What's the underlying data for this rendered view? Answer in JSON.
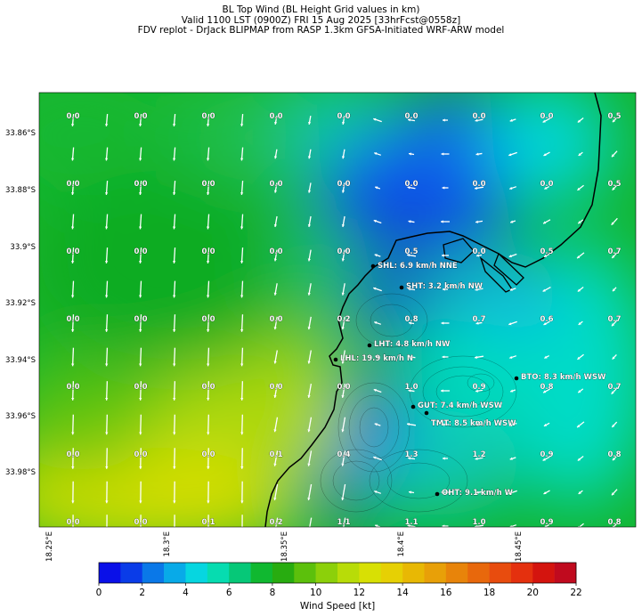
{
  "title": {
    "line1": "BL Top Wind (BL Height Grid values in km)",
    "line2": "Valid 1100 LST (0900Z) FRI 15 Aug 2025 [33hrFcst@0558z]",
    "line3": "FDV replot - DrJack BLIPMAP from RASP 1.3km GFSA-Initiated WRF-ARW model"
  },
  "lat_labels": [
    "33.86°S",
    "33.88°S",
    "33.9°S",
    "33.92°S",
    "33.94°S",
    "33.96°S",
    "33.98°S"
  ],
  "lon_labels": [
    "18.25°E",
    "18.3°E",
    "18.35°E",
    "18.4°E",
    "18.45°E"
  ],
  "grid_values": [
    [
      "0.0",
      "0.0",
      "0.0",
      "0.0",
      "0.0",
      "0.0",
      "0.0",
      "0.0",
      "0.5"
    ],
    [
      "0.0",
      "0.0",
      "0.0",
      "0.0",
      "0.0",
      "0.0",
      "0.0",
      "0.0",
      "0.5"
    ],
    [
      "0.0",
      "0.0",
      "0.0",
      "0.0",
      "0.0",
      "0.5",
      "0.0",
      "0.5",
      "0.7"
    ],
    [
      "0.0",
      "0.0",
      "0.0",
      "0.0",
      "0.2",
      "0.8",
      "0.7",
      "0.6",
      "0.7"
    ],
    [
      "0.0",
      "0.0",
      "0.0",
      "0.0",
      "0.0",
      "1.0",
      "0.9",
      "0.8",
      "0.7"
    ],
    [
      "0.0",
      "0.0",
      "0.0",
      "0.1",
      "0.4",
      "1.3",
      "1.2",
      "0.9",
      "0.8"
    ],
    [
      "0.0",
      "0.0",
      "0.1",
      "0.2",
      "1.1",
      "1.1",
      "1.0",
      "0.9",
      "0.8"
    ]
  ],
  "stations": [
    {
      "label": "SHL: 6.9 km/h NNE"
    },
    {
      "label": "SHT: 3.2 km/h NW"
    },
    {
      "label": "LHT: 4.8 km/h NW"
    },
    {
      "label": "LHL: 19.9 km/h N"
    },
    {
      "label": "BTO: 8.3 km/h WSW"
    },
    {
      "label": "GUT: 7.4 km/h WSW"
    },
    {
      "label": "TMT: 8.5 km/h WSW"
    },
    {
      "label": "OHT: 9.1 km/h W"
    }
  ],
  "colorbar": {
    "title": "Wind Speed [kt]",
    "ticks": [
      "0",
      "2",
      "4",
      "6",
      "8",
      "10",
      "12",
      "14",
      "16",
      "18",
      "20",
      "22"
    ],
    "colors": [
      "#0a10e8",
      "#0a3ce8",
      "#0a78e8",
      "#08aae8",
      "#06d6e0",
      "#06dcb0",
      "#06c878",
      "#10b830",
      "#28ac10",
      "#5cc00c",
      "#8cd00a",
      "#b8dc08",
      "#d8e004",
      "#e6d004",
      "#e8b804",
      "#e8a008",
      "#e8840a",
      "#e8680c",
      "#e84c0e",
      "#e4300e",
      "#d4140e",
      "#c00a1e"
    ]
  }
}
